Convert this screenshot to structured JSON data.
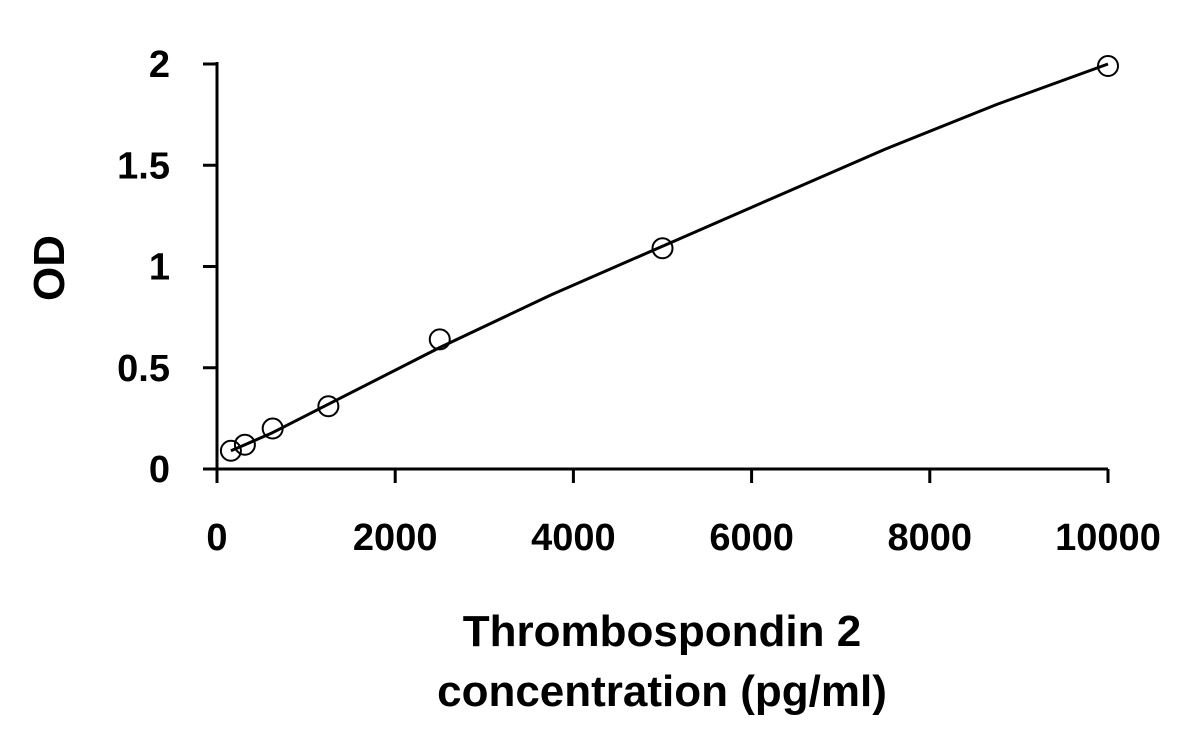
{
  "chart_data": {
    "type": "scatter",
    "title": "",
    "xlabel_lines": [
      "Thrombospondin 2",
      "concentration (pg/ml)"
    ],
    "ylabel": "OD",
    "xlim": [
      0,
      10000
    ],
    "ylim": [
      0,
      2
    ],
    "x_ticks": [
      0,
      2000,
      4000,
      6000,
      8000,
      10000
    ],
    "x_tick_labels": [
      "0",
      "2000",
      "4000",
      "6000",
      "8000",
      "10000"
    ],
    "y_ticks": [
      0,
      0.5,
      1,
      1.5,
      2
    ],
    "y_tick_labels": [
      "0",
      "0.5",
      "1",
      "1.5",
      "2"
    ],
    "grid": false,
    "legend": "none",
    "marker": "open-circle",
    "series": [
      {
        "x": [
          156,
          313,
          625,
          1250,
          2500,
          5000,
          10000
        ],
        "y": [
          0.09,
          0.12,
          0.2,
          0.31,
          0.64,
          1.09,
          1.99
        ]
      }
    ],
    "fit_curve": {
      "x": [
        156,
        313,
        625,
        1250,
        2500,
        3750,
        5000,
        6250,
        7500,
        8750,
        10000
      ],
      "y": [
        0.09,
        0.12,
        0.18,
        0.32,
        0.6,
        0.86,
        1.1,
        1.34,
        1.58,
        1.8,
        2.0
      ]
    },
    "colors": {
      "axis": "#000000",
      "marker_stroke": "#000000",
      "curve": "#000000",
      "background": "#ffffff"
    }
  }
}
